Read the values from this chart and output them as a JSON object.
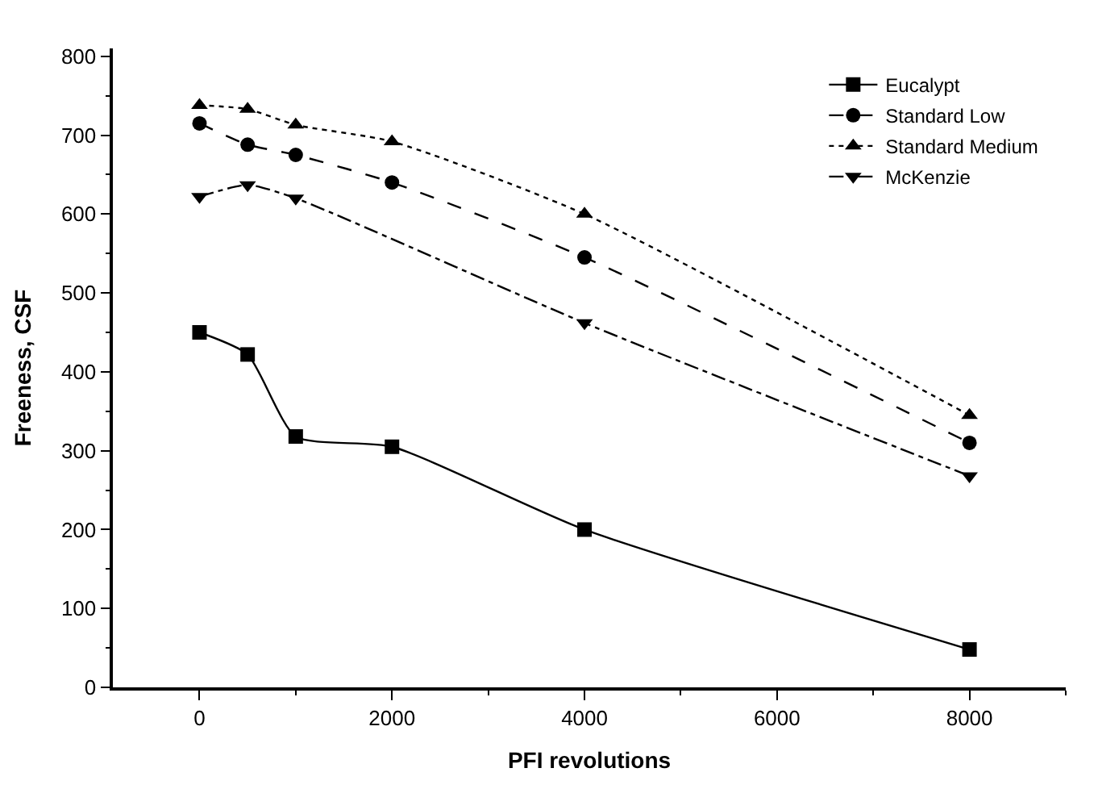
{
  "chart_data": {
    "type": "line",
    "xlabel": "PFI revolutions",
    "ylabel": "Freeness, CSF",
    "x": [
      0,
      500,
      1000,
      2000,
      4000,
      8000
    ],
    "series": [
      {
        "name": "Eucalypt",
        "color": "#000000",
        "marker": "square",
        "line_style": "solid",
        "values": [
          450,
          422,
          318,
          305,
          200,
          48
        ]
      },
      {
        "name": "Standard Low",
        "color": "#000000",
        "marker": "circle",
        "line_style": "dashed",
        "values": [
          715,
          688,
          675,
          640,
          545,
          310
        ]
      },
      {
        "name": "Standard Medium",
        "color": "#000000",
        "marker": "triangle",
        "line_style": "dotted",
        "values": [
          738,
          733,
          713,
          692,
          600,
          345
        ]
      },
      {
        "name": "McKenzie",
        "color": "#000000",
        "marker": "triangle-down",
        "line_style": "dashdot",
        "x": [
          0,
          500,
          1000,
          4000,
          8000
        ],
        "values": [
          622,
          637,
          620,
          462,
          268
        ]
      }
    ],
    "xlim": [
      -900,
      9000
    ],
    "xticks": [
      0,
      2000,
      4000,
      6000,
      8000
    ],
    "ylim": [
      0,
      810
    ],
    "yticks": [
      0,
      100,
      200,
      300,
      400,
      500,
      600,
      700,
      800
    ],
    "legend": "top right"
  }
}
